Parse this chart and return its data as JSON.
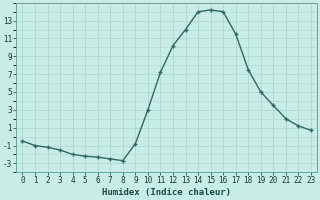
{
  "x": [
    0,
    1,
    2,
    3,
    4,
    5,
    6,
    7,
    8,
    9,
    10,
    11,
    12,
    13,
    14,
    15,
    16,
    17,
    18,
    19,
    20,
    21,
    22,
    23
  ],
  "y": [
    -0.5,
    -1.0,
    -1.2,
    -1.5,
    -2.0,
    -2.2,
    -2.3,
    -2.5,
    -2.7,
    -0.8,
    3.0,
    7.2,
    10.2,
    12.0,
    14.0,
    14.2,
    14.0,
    11.5,
    7.5,
    5.0,
    3.5,
    2.0,
    1.2,
    0.7
  ],
  "xlabel": "Humidex (Indice chaleur)",
  "bg_color": "#c8ece6",
  "line_color": "#2d6b62",
  "marker_color": "#2d6b62",
  "grid_color_major": "#b0d8d0",
  "grid_color_minor": "#b0d8d0",
  "xlim": [
    -0.5,
    23.5
  ],
  "ylim": [
    -4,
    15
  ],
  "yticks": [
    -3,
    -1,
    1,
    3,
    5,
    7,
    9,
    11,
    13
  ],
  "xticks": [
    0,
    1,
    2,
    3,
    4,
    5,
    6,
    7,
    8,
    9,
    10,
    11,
    12,
    13,
    14,
    15,
    16,
    17,
    18,
    19,
    20,
    21,
    22,
    23
  ],
  "xlabel_fontsize": 6.5,
  "tick_fontsize": 5.5
}
